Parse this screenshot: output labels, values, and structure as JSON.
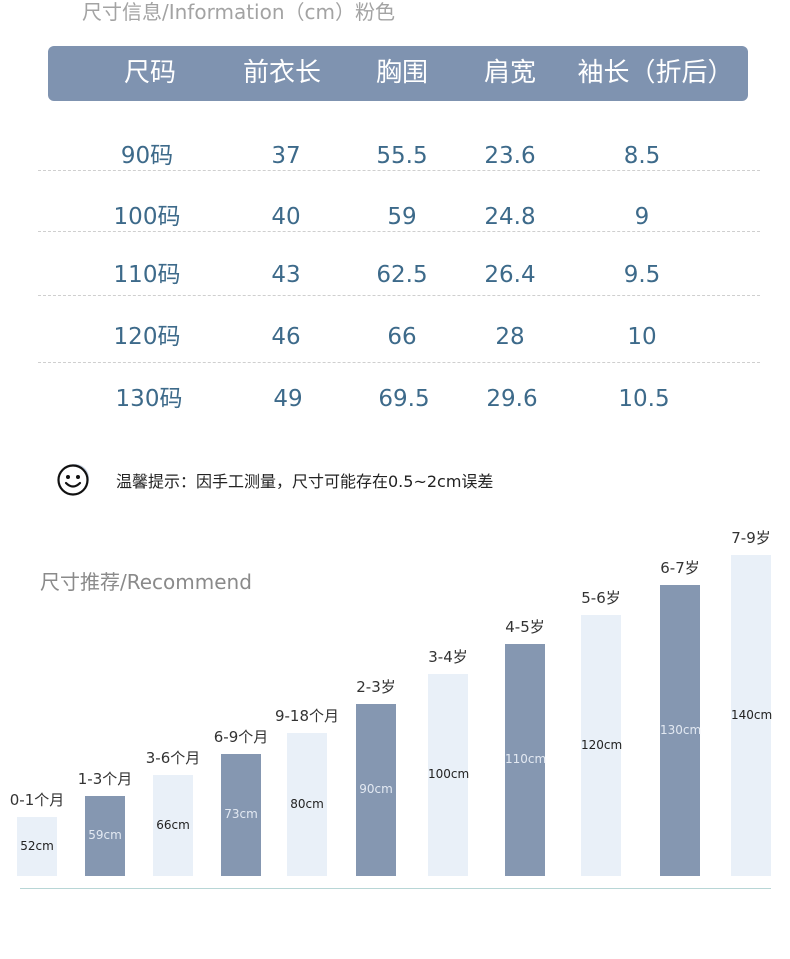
{
  "size_info": {
    "title": "尺寸信息/Information（cm）粉色",
    "headers": [
      "尺码",
      "前衣长",
      "胸围",
      "肩宽",
      "袖长（折后）"
    ],
    "rows": [
      [
        "90码",
        "37",
        "55.5",
        "23.6",
        "8.5"
      ],
      [
        "100码",
        "40",
        "59",
        "24.8",
        "9"
      ],
      [
        "110码",
        "43",
        "62.5",
        "26.4",
        "9.5"
      ],
      [
        "120码",
        "46",
        "66",
        "28",
        "10"
      ],
      [
        "130码",
        "49",
        "69.5",
        "29.6",
        "10.5"
      ]
    ]
  },
  "tip": {
    "icon": "smiley-face-icon",
    "text": "温馨提示：因手工测量，尺寸可能存在0.5~2cm误差"
  },
  "recommend": {
    "title": "尺寸推荐/Recommend",
    "colors": {
      "dark": "#8597b1",
      "light": "#e9f0f8"
    }
  },
  "chart_data": {
    "type": "bar",
    "categories": [
      "0-1个月",
      "1-3个月",
      "3-6个月",
      "6-9个月",
      "9-18个月",
      "2-3岁",
      "3-4岁",
      "4-5岁",
      "5-6岁",
      "6-7岁",
      "7-9岁"
    ],
    "values": [
      52,
      59,
      66,
      73,
      80,
      90,
      100,
      110,
      120,
      130,
      140
    ],
    "value_labels": [
      "52cm",
      "59cm",
      "66cm",
      "73cm",
      "80cm",
      "90cm",
      "100cm",
      "110cm",
      "120cm",
      "130cm",
      "140cm"
    ],
    "bar_styles": [
      "light",
      "dark",
      "light",
      "dark",
      "light",
      "dark",
      "light",
      "dark",
      "light",
      "dark",
      "light"
    ],
    "title": "",
    "xlabel": "",
    "ylabel": "",
    "grid": false
  }
}
